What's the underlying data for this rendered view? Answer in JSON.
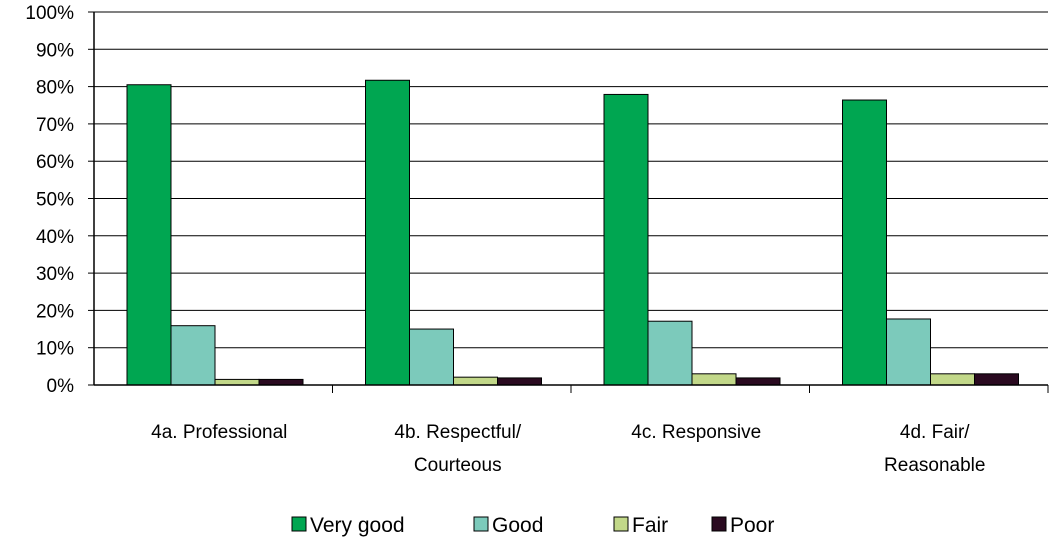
{
  "chart_data": {
    "type": "bar",
    "categories": [
      [
        "4a. Professional"
      ],
      [
        "4b. Respectful/",
        "Courteous"
      ],
      [
        "4c. Responsive"
      ],
      [
        "4d. Fair/",
        "Reasonable"
      ]
    ],
    "series": [
      {
        "name": "Very good",
        "color": "#00a651",
        "values": [
          80.5,
          81.7,
          77.9,
          76.4
        ]
      },
      {
        "name": "Good",
        "color": "#7ccabb",
        "values": [
          15.9,
          15.0,
          17.1,
          17.7
        ]
      },
      {
        "name": "Fair",
        "color": "#c2d889",
        "values": [
          1.5,
          2.1,
          3.0,
          3.0
        ]
      },
      {
        "name": "Poor",
        "color": "#2a0a20",
        "values": [
          1.5,
          1.9,
          1.9,
          3.0
        ]
      }
    ],
    "y_ticks": [
      "0%",
      "10%",
      "20%",
      "30%",
      "40%",
      "50%",
      "60%",
      "70%",
      "80%",
      "90%",
      "100%"
    ],
    "ylim": [
      0,
      100
    ],
    "grid": true,
    "legend_position": "bottom"
  }
}
